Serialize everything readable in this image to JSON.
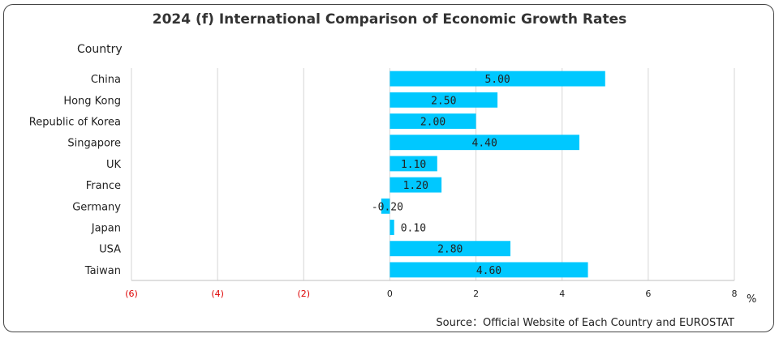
{
  "chart_data": {
    "type": "bar",
    "orientation": "horizontal",
    "title": "2024 (f) International Comparison of Economic Growth Rates",
    "ylabel": "Country",
    "xlabel": "%",
    "categories": [
      "China",
      "Hong Kong",
      "Republic of Korea",
      "Singapore",
      "UK",
      "France",
      "Germany",
      "Japan",
      "USA",
      "Taiwan"
    ],
    "values": [
      5.0,
      2.5,
      2.0,
      4.4,
      1.1,
      1.2,
      -0.2,
      0.1,
      2.8,
      4.6
    ],
    "data_labels": [
      "5.00",
      "2.50",
      "2.00",
      "4.40",
      "1.10",
      "1.20",
      "-0.20",
      "0.10",
      "2.80",
      "4.60"
    ],
    "xlim": [
      -6,
      8
    ],
    "xticks": [
      -6,
      -4,
      -2,
      0,
      2,
      4,
      6,
      8
    ],
    "xtick_labels": [
      "(6)",
      "(4)",
      "(2)",
      "0",
      "2",
      "4",
      "6",
      "8"
    ],
    "grid": true,
    "legend": "none",
    "bar_color": "#00c8ff",
    "negative_tick_color": "#dd0000"
  },
  "source_text": "Source：Official Website of Each Country and EUROSTAT"
}
